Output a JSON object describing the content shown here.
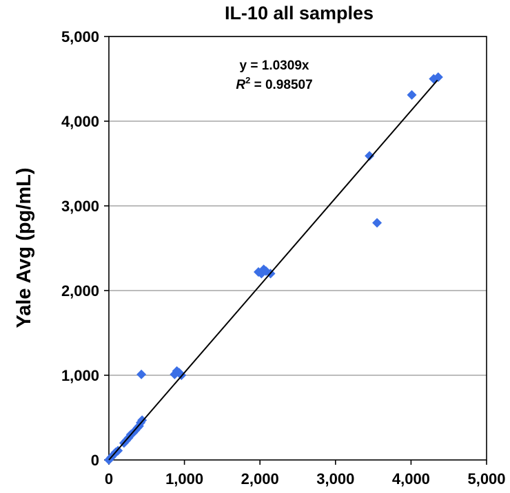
{
  "chart_data": {
    "type": "scatter",
    "title": "IL-10 all samples",
    "xlabel": "",
    "ylabel": "Yale Avg (pg/mL)",
    "xlim": [
      0,
      5000
    ],
    "ylim": [
      0,
      5000
    ],
    "x_ticks": [
      "0",
      "1,000",
      "2,000",
      "3,000",
      "4,000",
      "5,000"
    ],
    "y_ticks": [
      "0",
      "1,000",
      "2,000",
      "3,000",
      "4,000",
      "5,000"
    ],
    "grid": "horizontal",
    "marker_color": "#3b6fe6",
    "trendline": {
      "equation": "y = 1.0309x",
      "r2_label": "R",
      "r2_sup": "2",
      "r2_value": " = 0.98507",
      "slope": 1.0309,
      "x_range": [
        0,
        4350
      ]
    },
    "points": [
      {
        "x": 0,
        "y": 0
      },
      {
        "x": 30,
        "y": 30
      },
      {
        "x": 60,
        "y": 60
      },
      {
        "x": 90,
        "y": 90
      },
      {
        "x": 120,
        "y": 110
      },
      {
        "x": 200,
        "y": 200
      },
      {
        "x": 230,
        "y": 230
      },
      {
        "x": 260,
        "y": 260
      },
      {
        "x": 290,
        "y": 300
      },
      {
        "x": 320,
        "y": 320
      },
      {
        "x": 350,
        "y": 350
      },
      {
        "x": 380,
        "y": 380
      },
      {
        "x": 400,
        "y": 400
      },
      {
        "x": 420,
        "y": 440
      },
      {
        "x": 440,
        "y": 470
      },
      {
        "x": 430,
        "y": 1010
      },
      {
        "x": 870,
        "y": 1010
      },
      {
        "x": 900,
        "y": 1050
      },
      {
        "x": 930,
        "y": 1030
      },
      {
        "x": 960,
        "y": 1000
      },
      {
        "x": 1980,
        "y": 2220
      },
      {
        "x": 2020,
        "y": 2200
      },
      {
        "x": 2050,
        "y": 2250
      },
      {
        "x": 2080,
        "y": 2230
      },
      {
        "x": 2140,
        "y": 2200
      },
      {
        "x": 3450,
        "y": 3590
      },
      {
        "x": 3550,
        "y": 2800
      },
      {
        "x": 4010,
        "y": 4310
      },
      {
        "x": 4300,
        "y": 4500
      },
      {
        "x": 4360,
        "y": 4520
      }
    ]
  }
}
